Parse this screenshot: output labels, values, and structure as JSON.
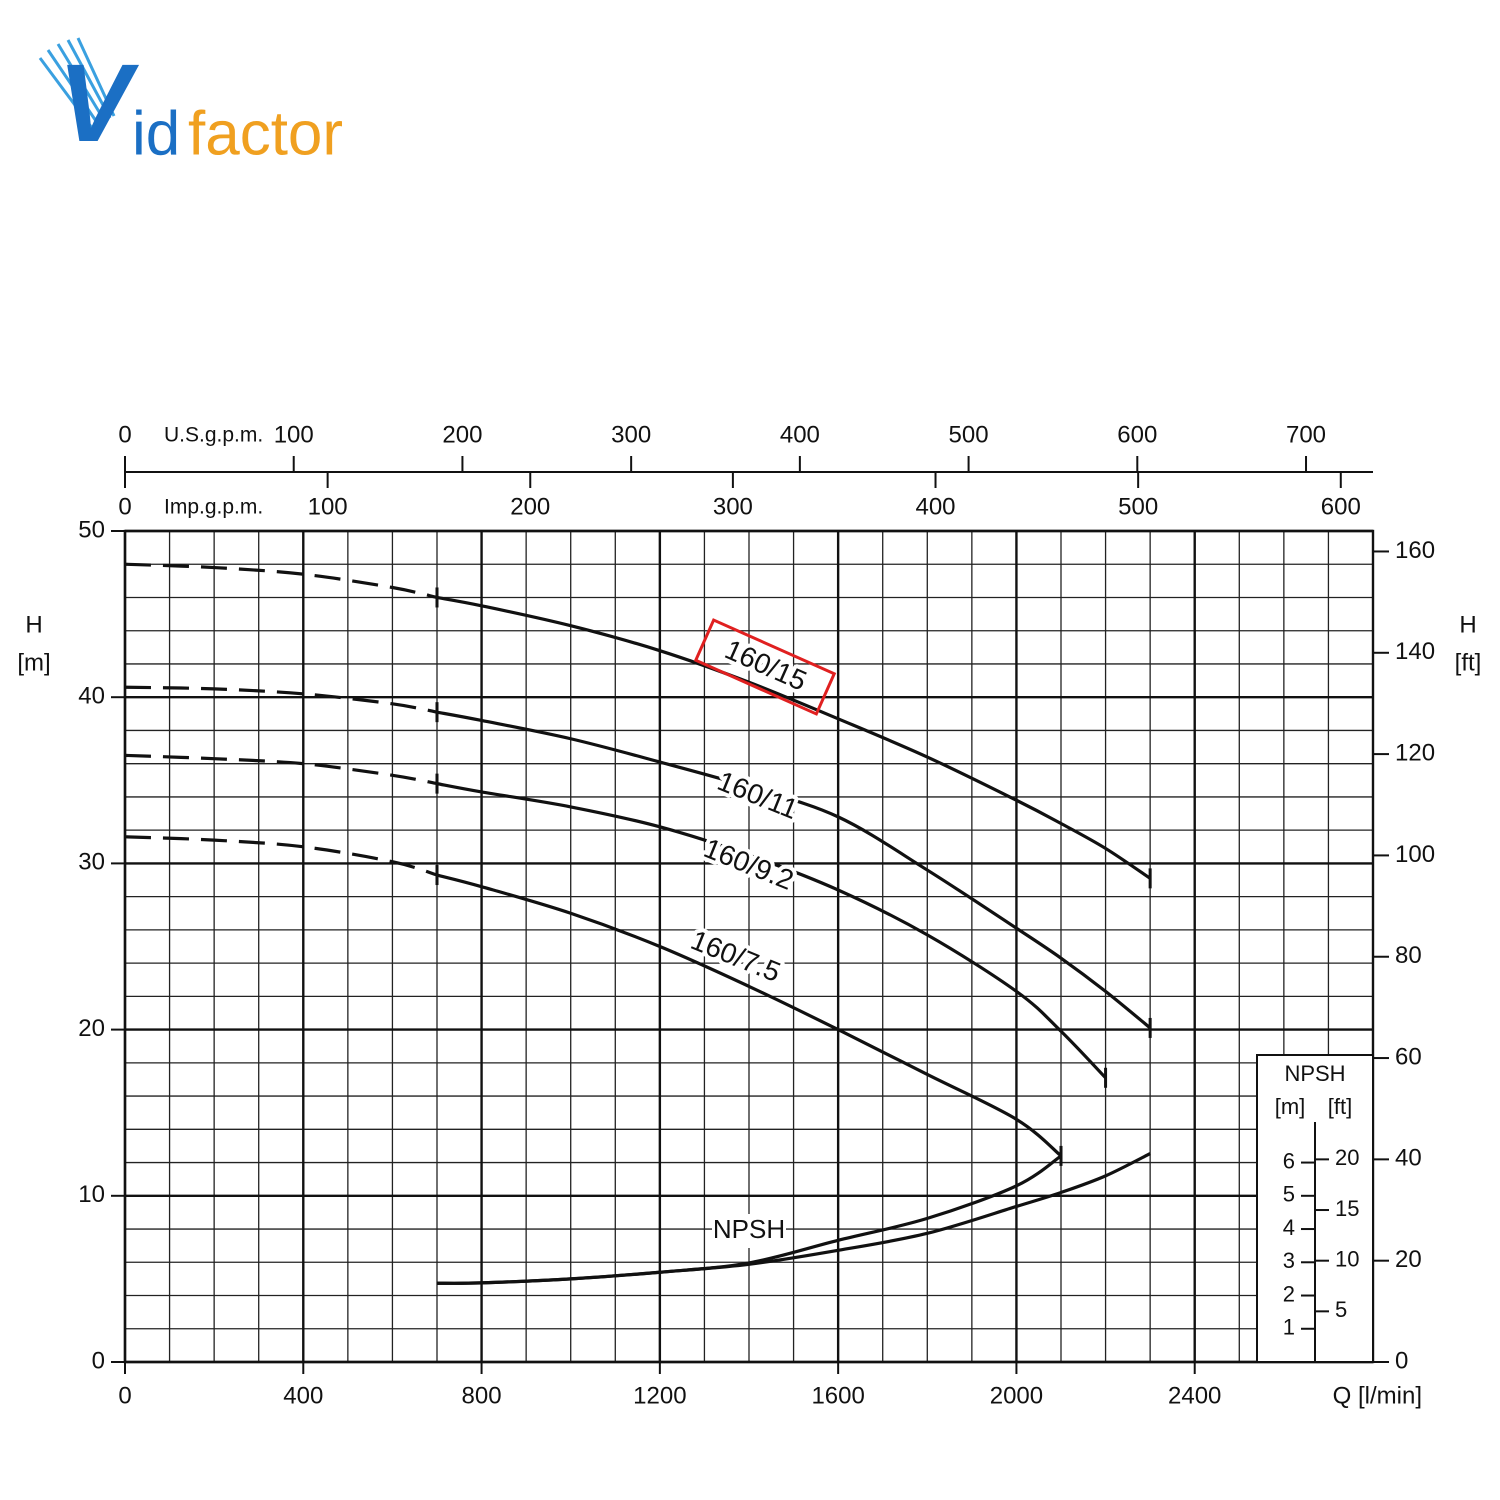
{
  "logo": {
    "initial": "V",
    "first": "id",
    "second": "factor"
  },
  "chart_data": {
    "type": "line",
    "xlabel": "Q [l/min]",
    "ylabel": "H",
    "yunit": "[m]",
    "y2label": "H",
    "y2unit": "[ft]",
    "x": [
      0,
      200,
      400,
      600,
      700,
      800,
      1000,
      1200,
      1400,
      1600,
      1800,
      2000,
      2100,
      2200,
      2300
    ],
    "xlim": [
      0,
      2800
    ],
    "xticks": [
      0,
      400,
      800,
      1200,
      1600,
      2000,
      2400
    ],
    "ylim": [
      0,
      50
    ],
    "yticks": [
      0,
      10,
      20,
      30,
      40,
      50
    ],
    "y2lim": [
      0,
      164.04
    ],
    "y2ticks": [
      0,
      20,
      40,
      60,
      80,
      100,
      120,
      140,
      160
    ],
    "grid": true,
    "minor_xstep": 100,
    "minor_ystep": 2,
    "dash_until_x": 700,
    "top_axes": [
      {
        "label": "U.S.g.p.m.",
        "lim": [
          0,
          739.7
        ],
        "ticks": [
          0,
          100,
          200,
          300,
          400,
          500,
          600,
          700
        ]
      },
      {
        "label": "Imp.g.p.m.",
        "lim": [
          0,
          615.9
        ],
        "ticks": [
          0,
          100,
          200,
          300,
          400,
          500,
          600
        ]
      }
    ],
    "npsh_scale": {
      "title": "NPSH",
      "unit": "[m]",
      "unit2": "[ft]",
      "ylim": [
        0,
        25
      ],
      "yticks": [
        1,
        2,
        3,
        4,
        5,
        6
      ],
      "y2lim": [
        0,
        82.02
      ],
      "y2ticks": [
        5,
        10,
        15,
        20
      ]
    },
    "series": [
      {
        "name": "160/15",
        "color": "#111111",
        "highlight": "#e02020",
        "values": [
          48,
          47.8,
          47.4,
          46.6,
          46.0,
          45.5,
          44.3,
          42.8,
          40.9,
          38.7,
          36.4,
          33.8,
          32.4,
          30.9,
          29.1
        ]
      },
      {
        "name": "160/11",
        "color": "#111111",
        "values": [
          40.6,
          40.5,
          40.2,
          39.6,
          39.1,
          38.6,
          37.5,
          36.1,
          34.6,
          32.8,
          29.6,
          26.1,
          24.3,
          22.3,
          20.1
        ]
      },
      {
        "name": "160/9.2",
        "color": "#111111",
        "values": [
          36.5,
          36.3,
          36.0,
          35.3,
          34.8,
          34.3,
          33.4,
          32.2,
          30.5,
          28.4,
          25.7,
          22.3,
          19.9,
          17.1,
          null
        ]
      },
      {
        "name": "160/7.5",
        "color": "#111111",
        "values": [
          31.6,
          31.4,
          31.0,
          30.1,
          29.3,
          28.6,
          27.0,
          25.0,
          22.6,
          20.0,
          17.3,
          14.6,
          12.4,
          null,
          null
        ]
      },
      {
        "name": "NPSH",
        "color": "#111111",
        "axis": "npsh",
        "values": [
          null,
          null,
          null,
          null,
          2.37,
          2.38,
          2.5,
          2.7,
          2.94,
          3.36,
          3.87,
          4.68,
          5.1,
          5.6,
          6.27
        ]
      },
      {
        "color": "#111111",
        "axis": "npsh",
        "values": [
          null,
          null,
          null,
          null,
          2.37,
          2.38,
          2.5,
          2.7,
          2.98,
          3.66,
          4.32,
          5.3,
          6.2,
          null,
          null
        ]
      }
    ]
  }
}
